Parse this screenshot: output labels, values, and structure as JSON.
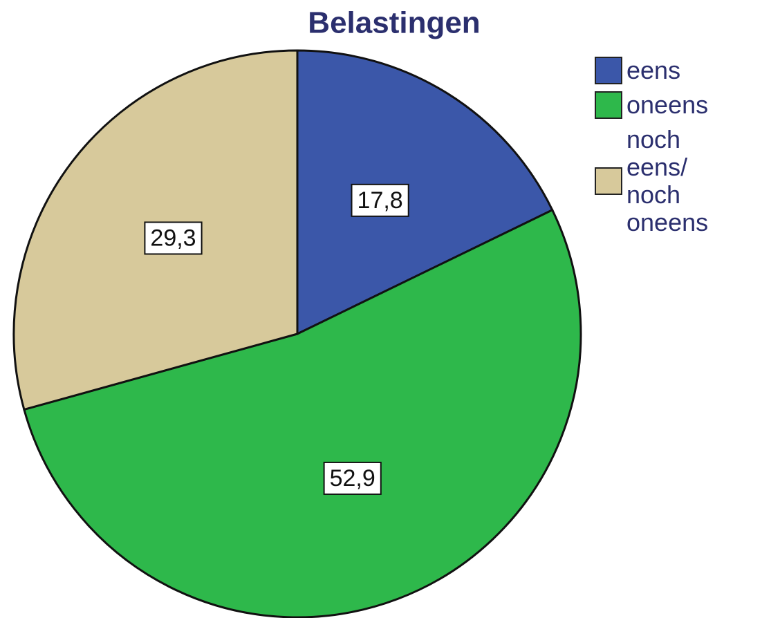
{
  "chart_data": {
    "type": "pie",
    "title": "Belastingen",
    "series": [
      {
        "name": "eens",
        "color": "#3b57a9",
        "values": [
          17.8
        ],
        "value_labels": [
          "17,8"
        ]
      },
      {
        "name": "oneens",
        "color": "#2eb84b",
        "values": [
          52.9
        ],
        "value_labels": [
          "52,9"
        ]
      },
      {
        "name": "noch eens/ noch oneens",
        "color": "#d7c99b",
        "values": [
          29.3
        ],
        "value_labels": [
          "29,3"
        ]
      }
    ]
  }
}
